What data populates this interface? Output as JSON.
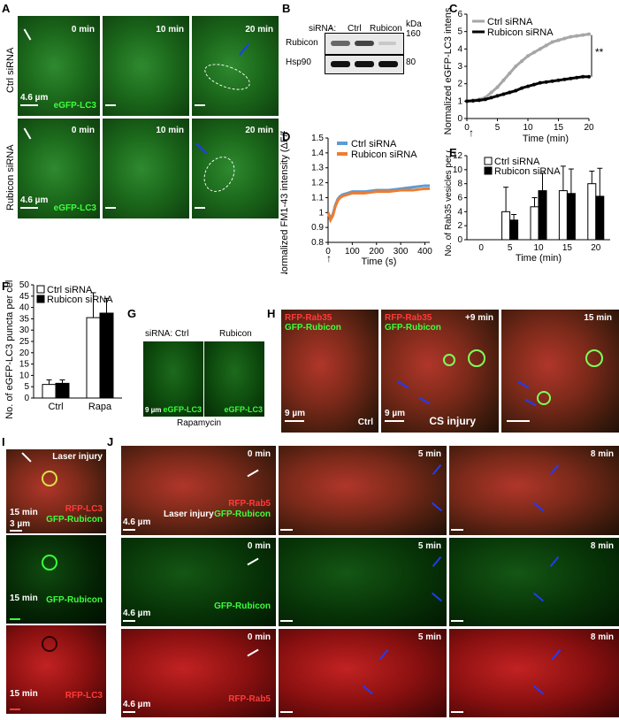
{
  "panels": {
    "A": {
      "label": "A",
      "row_labels": [
        "Ctrl siRNA",
        "Rubicon siRNA"
      ],
      "times": [
        "0 min",
        "10 min",
        "20 min"
      ],
      "marker": "eGFP-LC3",
      "scale": "4.6 µm"
    },
    "B": {
      "label": "B",
      "sirna_label": "siRNA:",
      "lanes": [
        "-",
        "Ctrl",
        "Rubicon"
      ],
      "unit": "kDa",
      "rows": [
        {
          "name": "Rubicon",
          "kda": "160"
        },
        {
          "name": "Hsp90",
          "kda": "80"
        }
      ]
    },
    "C": {
      "label": "C",
      "significance": "**"
    },
    "D": {
      "label": "D"
    },
    "E": {
      "label": "E"
    },
    "F": {
      "label": "F"
    },
    "G": {
      "label": "G",
      "sirna_label": "siRNA: Ctrl",
      "right_label": "Rubicon",
      "marker": "eGFP-LC3",
      "scale": "9 µm",
      "caption": "Rapamycin"
    },
    "H": {
      "label": "H",
      "labels_red": "RFP-Rab35",
      "labels_green": "GFP-Rubicon",
      "time_mid": "+9 min",
      "time_right": "15 min",
      "scale": "9 µm",
      "ctrl": "Ctrl",
      "cs": "CS injury"
    },
    "I": {
      "label": "I",
      "laser": "Laser injury",
      "time": "15 min",
      "red": "RFP-LC3",
      "green": "GFP-Rubicon",
      "scale": "3 µm"
    },
    "J": {
      "label": "J",
      "times": [
        "0 min",
        "5 min",
        "8 min"
      ],
      "laser": "Laser injury",
      "red": "RFP-Rab5",
      "green": "GFP-Rubicon",
      "scale": "4.6 µm"
    }
  },
  "chart_data": [
    {
      "id": "C",
      "type": "line",
      "xlabel": "Time (min)",
      "ylabel": "Normalized eGFP-LC3 intensity",
      "xlim": [
        0,
        20
      ],
      "ylim": [
        0,
        6
      ],
      "xticks": [
        0,
        5,
        10,
        15,
        20
      ],
      "yticks": [
        0,
        1,
        2,
        3,
        4,
        5,
        6
      ],
      "legend_placement": "top-left",
      "series": [
        {
          "name": "Ctrl siRNA",
          "color": "#a6a6a6",
          "x": [
            0,
            1,
            2,
            3,
            4,
            5,
            6,
            7,
            8,
            9,
            10,
            11,
            12,
            13,
            14,
            15,
            16,
            17,
            18,
            19,
            20
          ],
          "y": [
            1.0,
            1.05,
            1.1,
            1.2,
            1.5,
            1.8,
            2.2,
            2.6,
            3.0,
            3.3,
            3.6,
            3.8,
            4.0,
            4.2,
            4.4,
            4.5,
            4.6,
            4.7,
            4.75,
            4.8,
            4.85
          ]
        },
        {
          "name": "Rubicon siRNA",
          "color": "#000000",
          "x": [
            0,
            1,
            2,
            3,
            4,
            5,
            6,
            7,
            8,
            9,
            10,
            11,
            12,
            13,
            14,
            15,
            16,
            17,
            18,
            19,
            20
          ],
          "y": [
            1.0,
            1.02,
            1.05,
            1.1,
            1.2,
            1.3,
            1.4,
            1.5,
            1.6,
            1.75,
            1.85,
            1.95,
            2.05,
            2.1,
            2.15,
            2.2,
            2.25,
            2.3,
            2.35,
            2.4,
            2.4
          ]
        }
      ]
    },
    {
      "id": "D",
      "type": "line",
      "xlabel": "Time (s)",
      "ylabel": "Normalized FM1-43 intensity (ΔF/F0)",
      "xlim": [
        0,
        420
      ],
      "ylim": [
        0.8,
        1.5
      ],
      "xticks": [
        0,
        100,
        200,
        300,
        400
      ],
      "yticks": [
        0.8,
        0.9,
        1.0,
        1.1,
        1.2,
        1.3,
        1.4,
        1.5
      ],
      "ytick_labels": [
        "0.8",
        "0.9",
        "1",
        "1.1",
        "1.2",
        "1.3",
        "1.4",
        "1.5"
      ],
      "legend_placement": "top",
      "series": [
        {
          "name": "Ctrl siRNA",
          "color": "#5b9bd5",
          "x": [
            0,
            10,
            20,
            30,
            40,
            50,
            60,
            80,
            100,
            150,
            200,
            250,
            300,
            350,
            400,
            420
          ],
          "y": [
            1.0,
            0.96,
            0.99,
            1.05,
            1.09,
            1.11,
            1.12,
            1.13,
            1.14,
            1.14,
            1.15,
            1.15,
            1.16,
            1.17,
            1.18,
            1.18
          ]
        },
        {
          "name": "Rubicon siRNA",
          "color": "#ed7d31",
          "x": [
            0,
            10,
            20,
            30,
            40,
            50,
            60,
            80,
            100,
            150,
            200,
            250,
            300,
            350,
            400,
            420
          ],
          "y": [
            1.0,
            0.95,
            0.98,
            1.04,
            1.08,
            1.1,
            1.11,
            1.12,
            1.13,
            1.13,
            1.14,
            1.14,
            1.15,
            1.15,
            1.16,
            1.16
          ]
        }
      ]
    },
    {
      "id": "E",
      "type": "bar",
      "xlabel": "Time (min)",
      "ylabel": "No. of Rab35 vesicles per cell",
      "categories": [
        "0",
        "5",
        "10",
        "15",
        "20"
      ],
      "ylim": [
        0,
        12
      ],
      "yticks": [
        0,
        2,
        4,
        6,
        8,
        10,
        12
      ],
      "legend_placement": "top-left",
      "series": [
        {
          "name": "Ctrl siRNA",
          "fill": "#ffffff",
          "values": [
            0,
            4,
            4.7,
            7,
            8
          ],
          "errors": [
            0,
            3.5,
            1.3,
            3.5,
            1.8
          ]
        },
        {
          "name": "Rubicon siRNA",
          "fill": "#000000",
          "values": [
            0,
            2.8,
            7,
            6.6,
            6.2
          ],
          "errors": [
            0,
            0.8,
            2.5,
            3.5,
            4
          ]
        }
      ]
    },
    {
      "id": "F",
      "type": "bar",
      "xlabel": "",
      "ylabel": "No. of eGFP-LC3 puncta per cell",
      "categories": [
        "Ctrl",
        "Rapa"
      ],
      "ylim": [
        0,
        50
      ],
      "yticks": [
        0,
        5,
        10,
        15,
        20,
        25,
        30,
        35,
        40,
        45,
        50
      ],
      "legend_placement": "top-left",
      "series": [
        {
          "name": "Ctrl siRNA",
          "fill": "#ffffff",
          "values": [
            6,
            35.5
          ],
          "errors": [
            2,
            11
          ]
        },
        {
          "name": "Rubicon siRNA",
          "fill": "#000000",
          "values": [
            6.5,
            37.5
          ],
          "errors": [
            1.5,
            6.5
          ]
        }
      ]
    }
  ]
}
